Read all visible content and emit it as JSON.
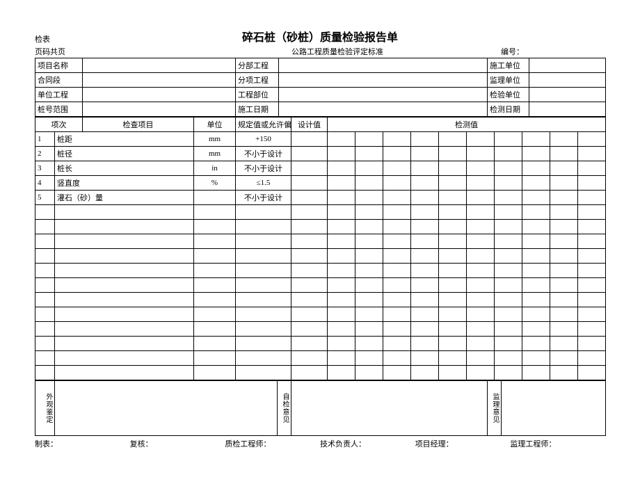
{
  "header": {
    "check_label": "检表",
    "title": "碎石桩（砂桩）质量检验报告单",
    "page_num": "页码共页",
    "standard": "公路工程质量检验评定标准",
    "form_num": "编号："
  },
  "info_rows": {
    "project_name": "项目名称",
    "sub_project": "分部工程",
    "construction_unit": "施工单位",
    "contract_section": "合同段",
    "item_project": "分项工程",
    "supervision_unit": "监理单位",
    "unit_project": "单位工程",
    "project_part": "工程部位",
    "inspection_unit": "检验单位",
    "pile_range": "桩号范围",
    "construction_date": "施工日期",
    "inspection_date": "检测日期"
  },
  "table_headers": {
    "item_no": "项次",
    "check_item": "检查项目",
    "unit": "单位",
    "spec_or_tolerance": "规定值或允许偏",
    "design_value": "设计值",
    "measured_value": "检测值"
  },
  "check_rows": [
    {
      "no": "1",
      "item": "桩距",
      "unit": "mm",
      "spec": "+150"
    },
    {
      "no": "2",
      "item": "桩径",
      "unit": "mm",
      "spec": "不小于设计"
    },
    {
      "no": "3",
      "item": "桩长",
      "unit": "in",
      "spec": "不小于设计"
    },
    {
      "no": "4",
      "item": "竖直度",
      "unit": "%",
      "spec": "≤1.5"
    },
    {
      "no": "5",
      "item": "灌石（砂）量",
      "unit": "",
      "spec": "不小于设计"
    }
  ],
  "empty_row_count": 12,
  "opinions": {
    "appearance": "外观鉴定",
    "self_check": "自检意见",
    "supervision": "监理意见"
  },
  "footer": {
    "preparer": "制表：",
    "reviewer": "复核：",
    "qc_engineer": "质检工程师：",
    "tech_lead": "技术负责人：",
    "project_manager": "项目经理：",
    "supervision_engineer": "监理工程师："
  }
}
